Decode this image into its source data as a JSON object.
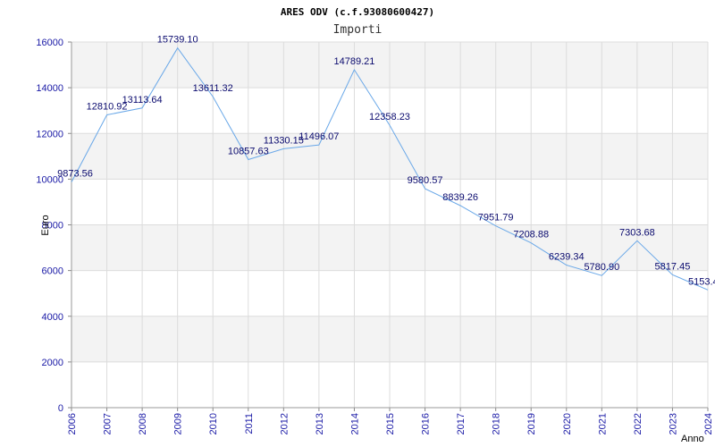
{
  "chart_data": {
    "type": "line",
    "title": "ARES ODV (c.f.93080600427)",
    "subtitle": "Importi",
    "xlabel": "Anno",
    "ylabel": "Euro",
    "ylim": [
      0,
      16000
    ],
    "y_ticks": [
      "0",
      "2000",
      "4000",
      "6000",
      "8000",
      "10000",
      "12000",
      "14000",
      "16000"
    ],
    "grid": true,
    "colors": {
      "line": "#6aa8e8",
      "band": "#f3f3f3",
      "grid": "#dcdcdc",
      "tick": "#1a1aa6"
    },
    "x": [
      "2006",
      "2007",
      "2008",
      "2009",
      "2010",
      "2011",
      "2012",
      "2013",
      "2014",
      "2015",
      "2016",
      "2017",
      "2018",
      "2019",
      "2020",
      "2021",
      "2022",
      "2023",
      "2024"
    ],
    "series": [
      {
        "values": [
          9873.56,
          12810.92,
          13113.64,
          15739.1,
          13611.32,
          10857.63,
          11330.15,
          11496.07,
          14789.21,
          12358.23,
          9580.57,
          8839.26,
          7951.79,
          7208.88,
          6239.34,
          5780.9,
          7303.68,
          5817.45,
          5153.4
        ],
        "labels": [
          "9873.56",
          "12810.92",
          "13113.64",
          "15739.10",
          "13611.32",
          "10857.63",
          "11330.15",
          "11496.07",
          "14789.21",
          "12358.23",
          "9580.57",
          "8839.26",
          "7951.79",
          "7208.88",
          "6239.34",
          "5780.90",
          "7303.68",
          "5817.45",
          "5153.4"
        ]
      }
    ]
  }
}
